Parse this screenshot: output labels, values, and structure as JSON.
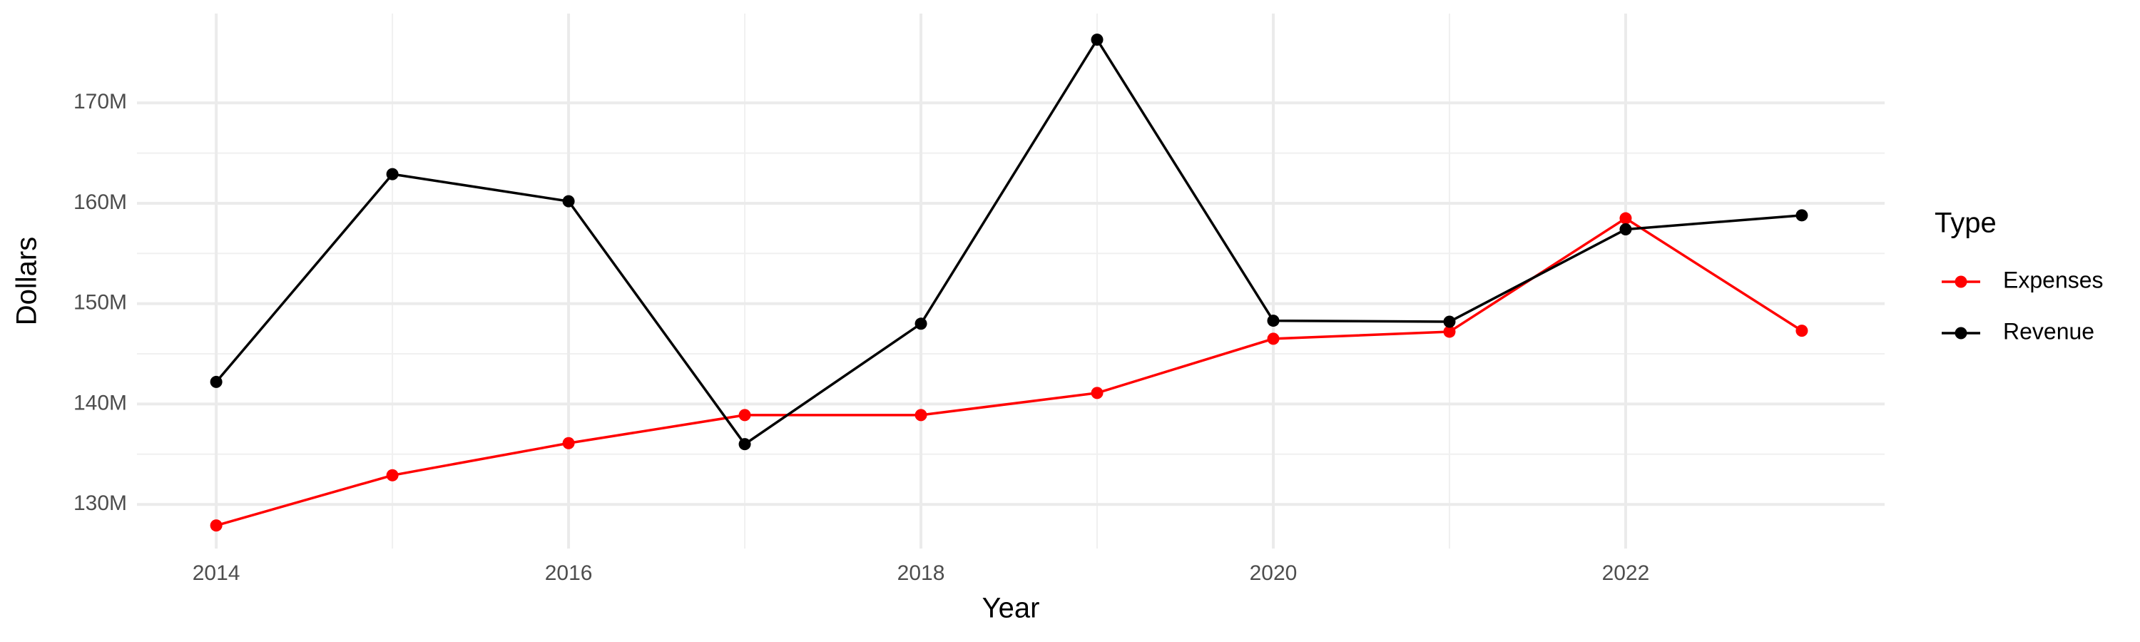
{
  "chart_data": {
    "type": "line",
    "x_label": "Year",
    "y_label": "Dollars",
    "legend_title": "Type",
    "x": [
      2014,
      2015,
      2016,
      2017,
      2018,
      2019,
      2020,
      2021,
      2022,
      2023
    ],
    "series": [
      {
        "name": "Expenses",
        "color": "#ff0000",
        "values": [
          127900000,
          132900000,
          136100000,
          138900000,
          138900000,
          141100000,
          146500000,
          147200000,
          158500000,
          147300000
        ]
      },
      {
        "name": "Revenue",
        "color": "#000000",
        "values": [
          142200000,
          162900000,
          160200000,
          136000000,
          148000000,
          176300000,
          148300000,
          148200000,
          157400000,
          158800000
        ]
      }
    ],
    "xlim": [
      2013.55,
      2023.47
    ],
    "xticks": [
      2014,
      2016,
      2018,
      2020,
      2022
    ],
    "ylim": [
      125600000,
      178900000
    ],
    "yticks": [
      {
        "value": 130000000,
        "label": "130M"
      },
      {
        "value": 140000000,
        "label": "140M"
      },
      {
        "value": 150000000,
        "label": "150M"
      },
      {
        "value": 160000000,
        "label": "160M"
      },
      {
        "value": 170000000,
        "label": "170M"
      }
    ],
    "grid": true,
    "legend": "right"
  }
}
